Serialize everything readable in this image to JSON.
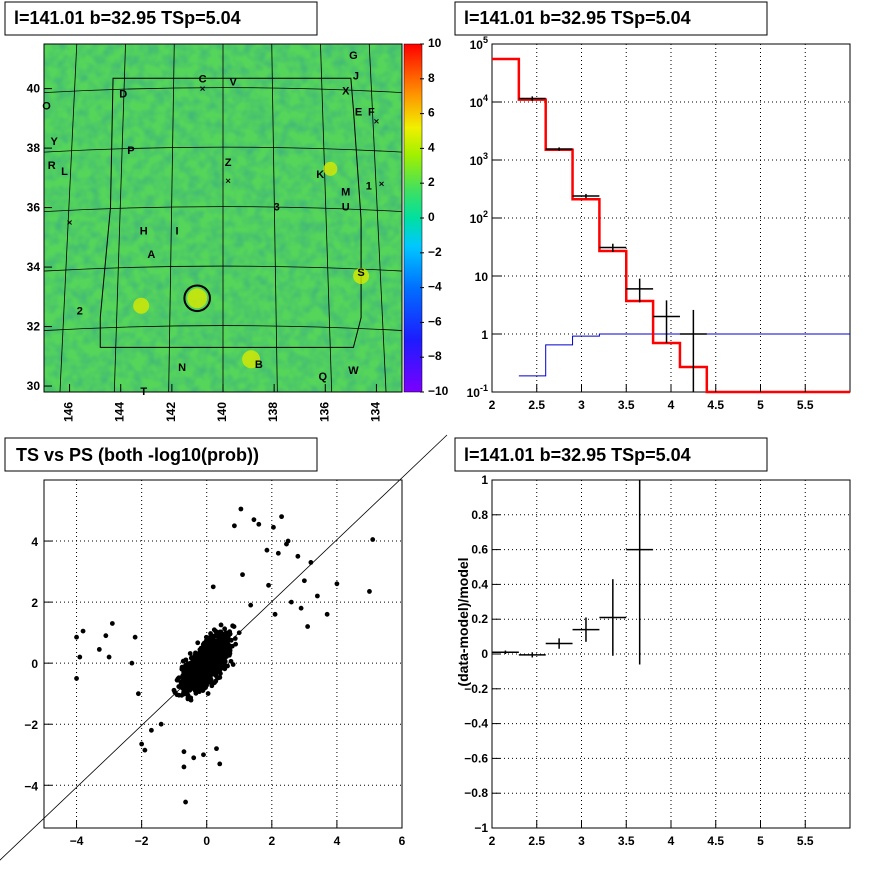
{
  "chart_data": [
    {
      "type": "heatmap",
      "title": "l=141.01 b=32.95 TSp=5.04",
      "xlim": [
        147,
        133
      ],
      "ylim": [
        29.8,
        41.5
      ],
      "x_ticks": [
        "146",
        "144",
        "142",
        "140",
        "138",
        "136",
        "134"
      ],
      "y_ticks": [
        "30",
        "32",
        "34",
        "36",
        "38",
        "40"
      ],
      "colorbar": {
        "range": [
          -10,
          10
        ],
        "ticks": [
          "10",
          "8",
          "6",
          "4",
          "2",
          "0",
          "−2",
          "−4",
          "−6",
          "−8",
          "−10"
        ]
      },
      "labels": [
        {
          "text": "G",
          "x": 134.9,
          "y": 41.0
        },
        {
          "text": "J",
          "x": 134.8,
          "y": 40.3
        },
        {
          "text": "C",
          "x": 140.8,
          "y": 40.2
        },
        {
          "text": "V",
          "x": 139.6,
          "y": 40.1
        },
        {
          "text": "X",
          "x": 135.2,
          "y": 39.8
        },
        {
          "text": "D",
          "x": 143.9,
          "y": 39.7
        },
        {
          "text": "O",
          "x": 146.9,
          "y": 39.3
        },
        {
          "text": "E",
          "x": 134.7,
          "y": 39.1
        },
        {
          "text": "F",
          "x": 134.2,
          "y": 39.1
        },
        {
          "text": "Y",
          "x": 146.6,
          "y": 38.1
        },
        {
          "text": "P",
          "x": 143.6,
          "y": 37.8
        },
        {
          "text": "Z",
          "x": 139.8,
          "y": 37.4
        },
        {
          "text": "R",
          "x": 146.7,
          "y": 37.3
        },
        {
          "text": "L",
          "x": 146.2,
          "y": 37.1
        },
        {
          "text": "K",
          "x": 136.2,
          "y": 37.0
        },
        {
          "text": "1",
          "x": 134.3,
          "y": 36.6
        },
        {
          "text": "M",
          "x": 135.2,
          "y": 36.4
        },
        {
          "text": "3",
          "x": 137.9,
          "y": 35.9
        },
        {
          "text": "U",
          "x": 135.2,
          "y": 35.9
        },
        {
          "text": "H",
          "x": 143.1,
          "y": 35.1
        },
        {
          "text": "I",
          "x": 141.8,
          "y": 35.1
        },
        {
          "text": "A",
          "x": 142.8,
          "y": 34.3
        },
        {
          "text": "S",
          "x": 134.6,
          "y": 33.7
        },
        {
          "text": "2",
          "x": 145.6,
          "y": 32.4
        },
        {
          "text": "N",
          "x": 141.6,
          "y": 30.5
        },
        {
          "text": "B",
          "x": 138.6,
          "y": 30.6
        },
        {
          "text": "W",
          "x": 134.9,
          "y": 30.4
        },
        {
          "text": "Q",
          "x": 136.1,
          "y": 30.2
        },
        {
          "text": "T",
          "x": 143.1,
          "y": 29.7
        }
      ],
      "markers": [
        {
          "x": 140.8,
          "y": 40.0
        },
        {
          "x": 134.0,
          "y": 38.9
        },
        {
          "x": 139.8,
          "y": 36.9
        },
        {
          "x": 133.8,
          "y": 36.8
        },
        {
          "x": 146.0,
          "y": 35.5
        }
      ],
      "circle": {
        "x": 141.01,
        "y": 32.95,
        "r": 0.5
      }
    },
    {
      "type": "line",
      "title": "l=141.01 b=32.95 TSp=5.04",
      "x_scale": "linear",
      "y_scale": "log",
      "xlim": [
        2,
        6
      ],
      "ylim": [
        0.1,
        100000
      ],
      "x_ticks": [
        "2",
        "2.5",
        "3",
        "3.5",
        "4",
        "4.5",
        "5",
        "5.5"
      ],
      "y_ticks": [
        "10^-1",
        "1",
        "10",
        "10^2",
        "10^3",
        "10^4",
        "10^5"
      ],
      "series": [
        {
          "style": "model-red",
          "edges": [
            2,
            2.3,
            2.6,
            2.9,
            3.2,
            3.5,
            3.8,
            4.1,
            4.4,
            4.7,
            6
          ],
          "values": [
            55000,
            11000,
            1500,
            210,
            27,
            3.7,
            0.7,
            0.27,
            0.1,
            0.1
          ]
        },
        {
          "style": "background-blue",
          "edges": [
            2.3,
            2.6,
            2.9,
            3.2,
            3.5,
            6
          ],
          "values": [
            0.19,
            0.65,
            0.92,
            1.0,
            1.0
          ]
        },
        {
          "style": "data-black",
          "points": [
            {
              "x": 2.45,
              "y": 11500,
              "lo": 10500,
              "hi": 12500,
              "xl": 2.3,
              "xh": 2.6
            },
            {
              "x": 2.75,
              "y": 1550,
              "lo": 1450,
              "hi": 1650,
              "xl": 2.6,
              "xh": 2.9
            },
            {
              "x": 3.05,
              "y": 240,
              "lo": 220,
              "hi": 260,
              "xl": 2.9,
              "xh": 3.2
            },
            {
              "x": 3.35,
              "y": 31,
              "lo": 26,
              "hi": 36,
              "xl": 3.2,
              "xh": 3.5
            },
            {
              "x": 3.65,
              "y": 6,
              "lo": 3.5,
              "hi": 9,
              "xl": 3.5,
              "xh": 3.8
            },
            {
              "x": 3.95,
              "y": 2,
              "lo": 0.7,
              "hi": 3.8,
              "xl": 3.8,
              "xh": 4.1
            },
            {
              "x": 4.25,
              "y": 1,
              "lo": 0.1,
              "hi": 2.6,
              "xl": 4.1,
              "xh": 4.4
            }
          ]
        }
      ]
    },
    {
      "type": "scatter",
      "title": "TS vs PS (both -log10(prob))",
      "xlim": [
        -5,
        6
      ],
      "ylim": [
        -5.4,
        6
      ],
      "x_ticks": [
        "−4",
        "−2",
        "0",
        "2",
        "4",
        "6"
      ],
      "y_ticks": [
        "−4",
        "−2",
        "0",
        "2",
        "4"
      ],
      "outliers": [
        [
          1.05,
          5.05
        ],
        [
          1.45,
          4.7
        ],
        [
          2.3,
          4.8
        ],
        [
          1.6,
          4.55
        ],
        [
          0.85,
          4.5
        ],
        [
          2.05,
          4.45
        ],
        [
          5.1,
          4.05
        ],
        [
          2.5,
          4.0
        ],
        [
          1.85,
          3.7
        ],
        [
          2.45,
          3.9
        ],
        [
          2.8,
          3.5
        ],
        [
          3.2,
          3.3
        ],
        [
          2.2,
          3.6
        ],
        [
          4.0,
          2.6
        ],
        [
          5.0,
          2.35
        ],
        [
          3.0,
          2.7
        ],
        [
          3.4,
          2.2
        ],
        [
          2.6,
          2.0
        ],
        [
          3.7,
          1.6
        ],
        [
          3.1,
          1.2
        ],
        [
          -4.0,
          0.85
        ],
        [
          -3.8,
          1.05
        ],
        [
          -2.9,
          1.3
        ],
        [
          -3.3,
          0.45
        ],
        [
          -3.1,
          0.9
        ],
        [
          -2.2,
          0.85
        ],
        [
          -3.9,
          0.2
        ],
        [
          -3.0,
          0.2
        ],
        [
          -4.0,
          -0.5
        ],
        [
          -2.3,
          0.0
        ],
        [
          -2.1,
          -1.0
        ],
        [
          -2.0,
          -2.65
        ],
        [
          -1.9,
          -2.85
        ],
        [
          -1.7,
          -2.2
        ],
        [
          -1.4,
          -2.0
        ],
        [
          -0.7,
          -3.4
        ],
        [
          -0.65,
          -4.55
        ],
        [
          -0.7,
          -2.9
        ],
        [
          -0.4,
          -3.1
        ],
        [
          0.4,
          -3.3
        ],
        [
          -0.1,
          -3.0
        ],
        [
          0.3,
          -2.8
        ],
        [
          1.35,
          1.9
        ],
        [
          1.1,
          2.9
        ],
        [
          1.9,
          2.55
        ],
        [
          0.2,
          2.5
        ],
        [
          2.1,
          1.6
        ],
        [
          2.9,
          1.8
        ]
      ]
    },
    {
      "type": "line",
      "title": "l=141.01 b=32.95 TSp=5.04",
      "ylabel": "(data-model)/model",
      "xlim": [
        2,
        6
      ],
      "ylim": [
        -1,
        1
      ],
      "x_ticks": [
        "2",
        "2.5",
        "3",
        "3.5",
        "4",
        "4.5",
        "5",
        "5.5"
      ],
      "y_ticks": [
        "−1",
        "−0.8",
        "−0.6",
        "−0.4",
        "−0.2",
        "0",
        "0.2",
        "0.4",
        "0.6",
        "0.8",
        "1"
      ],
      "points": [
        {
          "x": 2.15,
          "y": 0.01,
          "err": 0.01,
          "xl": 2.0,
          "xh": 2.3
        },
        {
          "x": 2.45,
          "y": -0.005,
          "err": 0.015,
          "xl": 2.3,
          "xh": 2.6
        },
        {
          "x": 2.75,
          "y": 0.06,
          "err": 0.03,
          "xl": 2.6,
          "xh": 2.9
        },
        {
          "x": 3.05,
          "y": 0.14,
          "err": 0.07,
          "xl": 2.9,
          "xh": 3.2
        },
        {
          "x": 3.35,
          "y": 0.21,
          "err": 0.22,
          "xl": 3.2,
          "xh": 3.5
        },
        {
          "x": 3.65,
          "y": 0.6,
          "err": 0.66,
          "xl": 3.5,
          "xh": 3.8
        }
      ]
    }
  ]
}
